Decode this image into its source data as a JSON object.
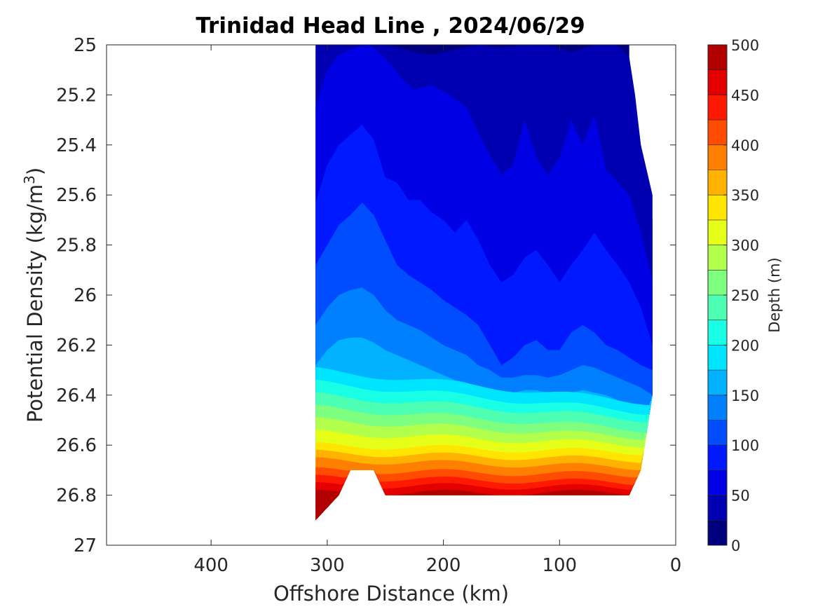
{
  "chart_data": {
    "type": "heatmap",
    "subtype": "filled-contour",
    "title": "Trinidad Head Line , 2024/06/29",
    "xlabel": "Offshore Distance (km)",
    "ylabel": "Potential Density (kg/m",
    "ylabel_superscript": "3",
    "ylabel_close": ")",
    "x_reversed": true,
    "y_reversed": true,
    "xlim": [
      490,
      0
    ],
    "ylim": [
      25,
      27
    ],
    "x_ticks": [
      400,
      300,
      200,
      100,
      0
    ],
    "x_tick_labels": [
      "400",
      "300",
      "200",
      "100",
      "0"
    ],
    "y_ticks": [
      25,
      25.2,
      25.4,
      25.6,
      25.8,
      26,
      26.2,
      26.4,
      26.6,
      26.8,
      27
    ],
    "y_tick_labels": [
      "25",
      "25.2",
      "25.4",
      "25.6",
      "25.8",
      "26",
      "26.2",
      "26.4",
      "26.6",
      "26.8",
      "27"
    ],
    "grid": false,
    "colormap": "jet",
    "colorbar": {
      "label": "Depth (m)",
      "range": [
        0,
        500
      ],
      "levels": [
        0,
        25,
        50,
        75,
        100,
        125,
        150,
        175,
        200,
        225,
        250,
        275,
        300,
        325,
        350,
        375,
        400,
        425,
        450,
        475,
        500
      ],
      "tick_values": [
        0,
        50,
        100,
        150,
        200,
        250,
        300,
        350,
        400,
        450,
        500
      ],
      "tick_labels": [
        "0",
        "50",
        "100",
        "150",
        "200",
        "250",
        "300",
        "350",
        "400",
        "450",
        "500"
      ],
      "colors": [
        "#00007f",
        "#0000b2",
        "#0000e5",
        "#0019ff",
        "#004cff",
        "#007fff",
        "#00b2ff",
        "#00e5ff",
        "#19ffe5",
        "#4cffb2",
        "#7fff7f",
        "#b2ff4c",
        "#e5ff19",
        "#ffe500",
        "#ffb200",
        "#ff7f00",
        "#ff4c00",
        "#ff1900",
        "#e50000",
        "#b20000"
      ]
    },
    "data_x_range": [
      20,
      310
    ],
    "data_extent": {
      "distance_km": [
        310,
        290,
        280,
        260,
        250,
        40,
        30,
        20,
        20,
        30,
        40
      ],
      "bottom_density": [
        26.9,
        26.8,
        26.7,
        26.7,
        26.8,
        26.8,
        26.7,
        26.4,
        25.7,
        25.4,
        25.3
      ],
      "top_density": 25.0,
      "top_edge_distance_km": 40
    },
    "depth_isopleths": [
      {
        "depth_m": 25,
        "distance_km": [
          310,
          270,
          250,
          240,
          225,
          210,
          190,
          170,
          150,
          130,
          110,
          90,
          70,
          50,
          40,
          35,
          30,
          20
        ],
        "density": [
          25.0,
          25.0,
          25.0,
          25.01,
          25.03,
          25.04,
          25.02,
          25.0,
          25.01,
          25.0,
          25.0,
          25.03,
          25.0,
          25.0,
          25.05,
          25.2,
          25.4,
          25.6
        ]
      },
      {
        "depth_m": 50,
        "distance_km": [
          310,
          300,
          290,
          275,
          265,
          255,
          245,
          235,
          225,
          210,
          195,
          180,
          165,
          150,
          140,
          130,
          120,
          110,
          100,
          90,
          80,
          70,
          60,
          50,
          40,
          30,
          20
        ],
        "density": [
          25.25,
          25.1,
          25.04,
          25.01,
          25.0,
          25.03,
          25.08,
          25.14,
          25.18,
          25.16,
          25.2,
          25.25,
          25.4,
          25.52,
          25.48,
          25.3,
          25.45,
          25.52,
          25.45,
          25.3,
          25.4,
          25.28,
          25.5,
          25.55,
          25.6,
          25.75,
          25.95
        ]
      },
      {
        "depth_m": 75,
        "distance_km": [
          310,
          300,
          290,
          280,
          270,
          260,
          250,
          240,
          230,
          220,
          210,
          200,
          190,
          180,
          170,
          160,
          150,
          140,
          130,
          120,
          110,
          100,
          90,
          80,
          70,
          60,
          50,
          40,
          30,
          20
        ],
        "density": [
          25.63,
          25.48,
          25.4,
          25.36,
          25.32,
          25.38,
          25.53,
          25.55,
          25.62,
          25.62,
          25.67,
          25.7,
          25.75,
          25.7,
          25.78,
          25.88,
          25.95,
          25.92,
          25.85,
          25.82,
          25.88,
          25.95,
          25.88,
          25.82,
          25.75,
          25.82,
          25.88,
          25.95,
          26.05,
          26.2
        ]
      },
      {
        "depth_m": 100,
        "distance_km": [
          310,
          300,
          290,
          280,
          270,
          260,
          250,
          240,
          230,
          220,
          210,
          200,
          190,
          180,
          170,
          160,
          150,
          140,
          130,
          120,
          110,
          100,
          90,
          80,
          70,
          60,
          50,
          40,
          30,
          20
        ],
        "density": [
          25.88,
          25.8,
          25.72,
          25.68,
          25.63,
          25.68,
          25.78,
          25.88,
          25.92,
          25.95,
          25.98,
          26.02,
          26.05,
          26.08,
          26.12,
          26.2,
          26.28,
          26.25,
          26.2,
          26.18,
          26.22,
          26.22,
          26.15,
          26.12,
          26.15,
          26.2,
          26.22,
          26.25,
          26.28,
          26.3
        ]
      },
      {
        "depth_m": 125,
        "distance_km": [
          310,
          300,
          290,
          280,
          270,
          260,
          250,
          240,
          230,
          220,
          210,
          200,
          190,
          180,
          170,
          160,
          150,
          140,
          130,
          120,
          110,
          100,
          90,
          80,
          70,
          60,
          50,
          40,
          30,
          20
        ],
        "density": [
          26.12,
          26.05,
          26.0,
          25.98,
          25.97,
          26.0,
          26.06,
          26.1,
          26.12,
          26.14,
          26.17,
          26.2,
          26.22,
          26.24,
          26.28,
          26.3,
          26.33,
          26.33,
          26.32,
          26.32,
          26.33,
          26.32,
          26.3,
          26.28,
          26.29,
          26.31,
          26.33,
          26.35,
          26.37,
          26.4
        ]
      },
      {
        "depth_m": 150,
        "distance_km": [
          310,
          300,
          290,
          280,
          270,
          260,
          250,
          240,
          230,
          220,
          210,
          200,
          190,
          180,
          170,
          160,
          150,
          140,
          130,
          120,
          110,
          100,
          90,
          80,
          70,
          60,
          50,
          40,
          30
        ],
        "density": [
          26.28,
          26.22,
          26.18,
          26.17,
          26.17,
          26.19,
          26.22,
          26.24,
          26.26,
          26.28,
          26.3,
          26.32,
          26.34,
          26.35,
          26.37,
          26.38,
          26.4,
          26.39,
          26.38,
          26.38,
          26.39,
          26.4,
          26.39,
          26.38,
          26.39,
          26.4,
          26.42,
          26.45,
          26.5
        ]
      }
    ],
    "dense_bands": {
      "depth_m": [
        175,
        200,
        225,
        250,
        275,
        300,
        325,
        350,
        375,
        400,
        425,
        450,
        475
      ],
      "density_at_300km": [
        26.3,
        26.35,
        26.4,
        26.45,
        26.5,
        26.55,
        26.6,
        26.63,
        26.66,
        26.7,
        26.73,
        26.76,
        26.79
      ],
      "density_at_40km": [
        26.43,
        26.47,
        26.5,
        26.54,
        26.57,
        26.6,
        26.63,
        26.66,
        26.69,
        26.72,
        26.75,
        26.77,
        26.79
      ]
    }
  }
}
